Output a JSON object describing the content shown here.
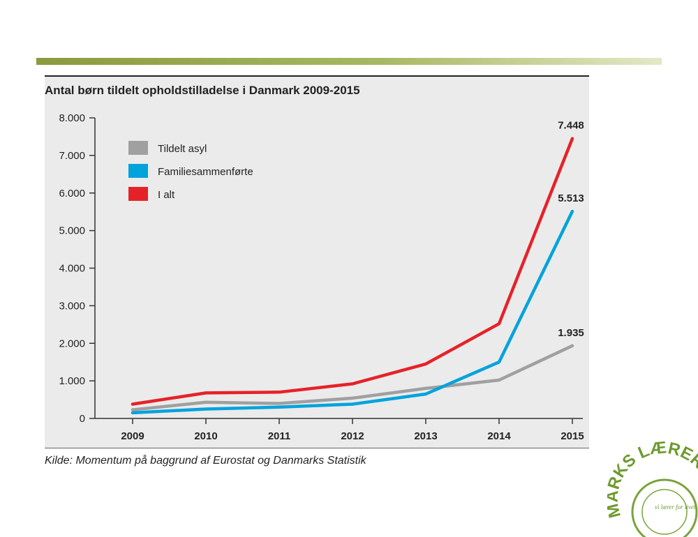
{
  "chart_data": {
    "type": "line",
    "title": "Antal børn tildelt opholdstilladelse i Danmark 2009-2015",
    "source": "Kilde: Momentum på baggrund af Eurostat og Danmarks Statistik",
    "x": [
      "2009",
      "2010",
      "2011",
      "2012",
      "2013",
      "2014",
      "2015"
    ],
    "ylim": [
      0,
      8000
    ],
    "yticks": [
      0,
      1000,
      2000,
      3000,
      4000,
      5000,
      6000,
      7000,
      8000
    ],
    "ytick_labels": [
      "0",
      "1.000",
      "2.000",
      "3.000",
      "4.000",
      "5.000",
      "6.000",
      "7.000",
      "8.000"
    ],
    "grid": false,
    "legend_position": "top-left",
    "series": [
      {
        "name": "Tildelt asyl",
        "color": "#a0a0a0",
        "values": [
          230,
          430,
          400,
          540,
          800,
          1020,
          1935
        ],
        "end_label": "1.935"
      },
      {
        "name": "Familiesammenførte",
        "color": "#00a3dc",
        "values": [
          150,
          250,
          300,
          380,
          650,
          1500,
          5513
        ],
        "end_label": "5.513"
      },
      {
        "name": "I alt",
        "color": "#e62229",
        "values": [
          380,
          680,
          700,
          920,
          1450,
          2520,
          7448
        ],
        "end_label": "7.448"
      }
    ]
  },
  "seal": {
    "text": "MARKS LÆRER",
    "inner": "vi lærer for livet"
  }
}
